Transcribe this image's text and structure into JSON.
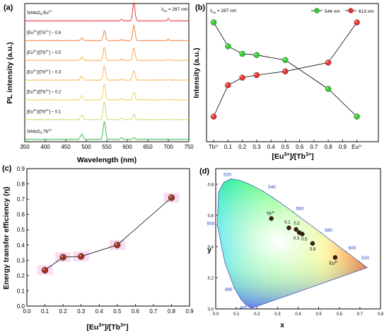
{
  "chart_data": [
    {
      "panel": "(a)",
      "type": "line",
      "excitation": "λex = 287 nm",
      "xlabel": "Wavelength (nm)",
      "ylabel": "PL intensity (a.u.)",
      "xlim": [
        350,
        750
      ],
      "xticks": [
        "350",
        "400",
        "450",
        "500",
        "550",
        "600",
        "650",
        "700",
        "750"
      ],
      "peaks": [
        489,
        544,
        586,
        616,
        700
      ],
      "series": [
        {
          "name": "SrMoO4:Eu3+",
          "label_parts": [
            "SrMoO",
            "4",
            ":Eu",
            "3+"
          ],
          "color": "#e8262b",
          "heights": [
            0,
            0,
            0.1,
            1.0,
            0.12
          ]
        },
        {
          "name": "[Eu3+]/[Tb3+] ~ 0.8",
          "label_parts": [
            "[Eu",
            "3+",
            "]/[Tb",
            "3+",
            "] ~ 0.8"
          ],
          "color": "#f07a30",
          "heights": [
            0.15,
            0.55,
            0.06,
            0.85,
            0.08
          ]
        },
        {
          "name": "[Eu3+]/[Tb3+] ~ 0.5",
          "label_parts": [
            "[Eu",
            "3+",
            "]/[Tb",
            "3+",
            "] ~ 0.5"
          ],
          "color": "#f6a23c",
          "heights": [
            0.18,
            0.7,
            0.06,
            0.7,
            0.06
          ]
        },
        {
          "name": "[Eu3+]/[Tb3+] ~ 0.3",
          "label_parts": [
            "[Eu",
            "3+",
            "]/[Tb",
            "3+",
            "] ~ 0.3"
          ],
          "color": "#f3b64a",
          "heights": [
            0.22,
            0.8,
            0.06,
            0.55,
            0.05
          ]
        },
        {
          "name": "[Eu3+]/[Tb3+] ~ 0.2",
          "label_parts": [
            "[Eu",
            "3+",
            "]/[Tb",
            "3+",
            "] ~ 0.2"
          ],
          "color": "#e7cf4a",
          "heights": [
            0.25,
            0.9,
            0.06,
            0.45,
            0.04
          ]
        },
        {
          "name": "[Eu3+]/[Tb3+] ~ 0.1",
          "label_parts": [
            "[Eu",
            "3+",
            "]/[Tb",
            "3+",
            "] ~ 0.1"
          ],
          "color": "#bfdc5a",
          "heights": [
            0.28,
            1.0,
            0.07,
            0.3,
            0.03
          ]
        },
        {
          "name": "SrMoO4:Tb3+",
          "label_parts": [
            "SrMoO",
            "4",
            ":Tb",
            "3+"
          ],
          "color": "#27b837",
          "heights": [
            0.3,
            1.0,
            0.1,
            0.08,
            0
          ]
        }
      ]
    },
    {
      "panel": "(b)",
      "type": "line",
      "excitation": "λex = 287 nm",
      "xlabel": "[Eu3+]/[Tb3+]",
      "ylabel": "Intensity (a.u.)",
      "xlim": [
        -0.05,
        1.15
      ],
      "ylim": [
        0,
        1.1
      ],
      "categories": [
        "Tb3+",
        "0.1",
        "0.2",
        "0.3",
        "0.5",
        "0.8",
        "Eu3+"
      ],
      "x": [
        0,
        0.1,
        0.2,
        0.3,
        0.5,
        0.8,
        1.0
      ],
      "xticks": [
        "Tb3+",
        "0.1",
        "0.2",
        "0.3",
        "0.4",
        "0.5",
        "0.6",
        "0.7",
        "0.8",
        "0.9",
        "Eu3+"
      ],
      "legend_position": "top-right",
      "series": [
        {
          "name": "544 nm",
          "color": "#2ecc2e",
          "values": [
            0.95,
            0.76,
            0.7,
            0.69,
            0.65,
            0.42,
            0.2
          ]
        },
        {
          "name": "613 nm",
          "color": "#e53030",
          "values": [
            0.2,
            0.45,
            0.51,
            0.53,
            0.56,
            0.63,
            0.95
          ]
        }
      ]
    },
    {
      "panel": "(c)",
      "type": "line",
      "xlabel": "[Eu3+]/[Tb3+]",
      "ylabel": "Energy transfer efficiency (η)",
      "xlim": [
        0.0,
        0.9
      ],
      "ylim": [
        0.0,
        0.9
      ],
      "xticks": [
        "0.0",
        "0.1",
        "0.2",
        "0.3",
        "0.4",
        "0.5",
        "0.6",
        "0.7",
        "0.8",
        "0.9"
      ],
      "yticks": [
        "0.0",
        "0.1",
        "0.2",
        "0.3",
        "0.4",
        "0.5",
        "0.6",
        "0.7",
        "0.8",
        "0.9"
      ],
      "x": [
        0.1,
        0.2,
        0.3,
        0.5,
        0.8
      ],
      "y": [
        0.235,
        0.32,
        0.325,
        0.4,
        0.71
      ],
      "color": "#9a3324"
    },
    {
      "panel": "(d)",
      "type": "scatter",
      "xlabel": "x",
      "ylabel": "y",
      "xlim": [
        0,
        0.8
      ],
      "ylim": [
        0,
        0.9
      ],
      "xticks": [
        "0.0",
        "0.1",
        "0.2",
        "0.3",
        "0.4",
        "0.5",
        "0.6",
        "0.7",
        "0.8"
      ],
      "yticks": [
        "0.0",
        "0.2",
        "0.4",
        "0.6",
        "0.8"
      ],
      "wavelength_labels": [
        {
          "text": "460",
          "x": 0.144,
          "y": 0.03
        },
        {
          "text": "480",
          "x": 0.091,
          "y": 0.133
        },
        {
          "text": "500",
          "x": 0.008,
          "y": 0.538
        },
        {
          "text": "520",
          "x": 0.074,
          "y": 0.834
        },
        {
          "text": "540",
          "x": 0.23,
          "y": 0.754
        },
        {
          "text": "560",
          "x": 0.373,
          "y": 0.624
        },
        {
          "text": "580",
          "x": 0.512,
          "y": 0.487
        },
        {
          "text": "600",
          "x": 0.627,
          "y": 0.372
        },
        {
          "text": "620",
          "x": 0.691,
          "y": 0.308
        }
      ],
      "points": [
        {
          "label": "Tb3+",
          "x": 0.27,
          "y": 0.58
        },
        {
          "label": "0.1",
          "x": 0.355,
          "y": 0.52
        },
        {
          "label": "0.2",
          "x": 0.39,
          "y": 0.51
        },
        {
          "label": "0.3",
          "x": 0.405,
          "y": 0.49
        },
        {
          "label": "0.5",
          "x": 0.42,
          "y": 0.48
        },
        {
          "label": "0.8",
          "x": 0.47,
          "y": 0.42
        },
        {
          "label": "Eu3+",
          "x": 0.58,
          "y": 0.33
        }
      ]
    }
  ]
}
